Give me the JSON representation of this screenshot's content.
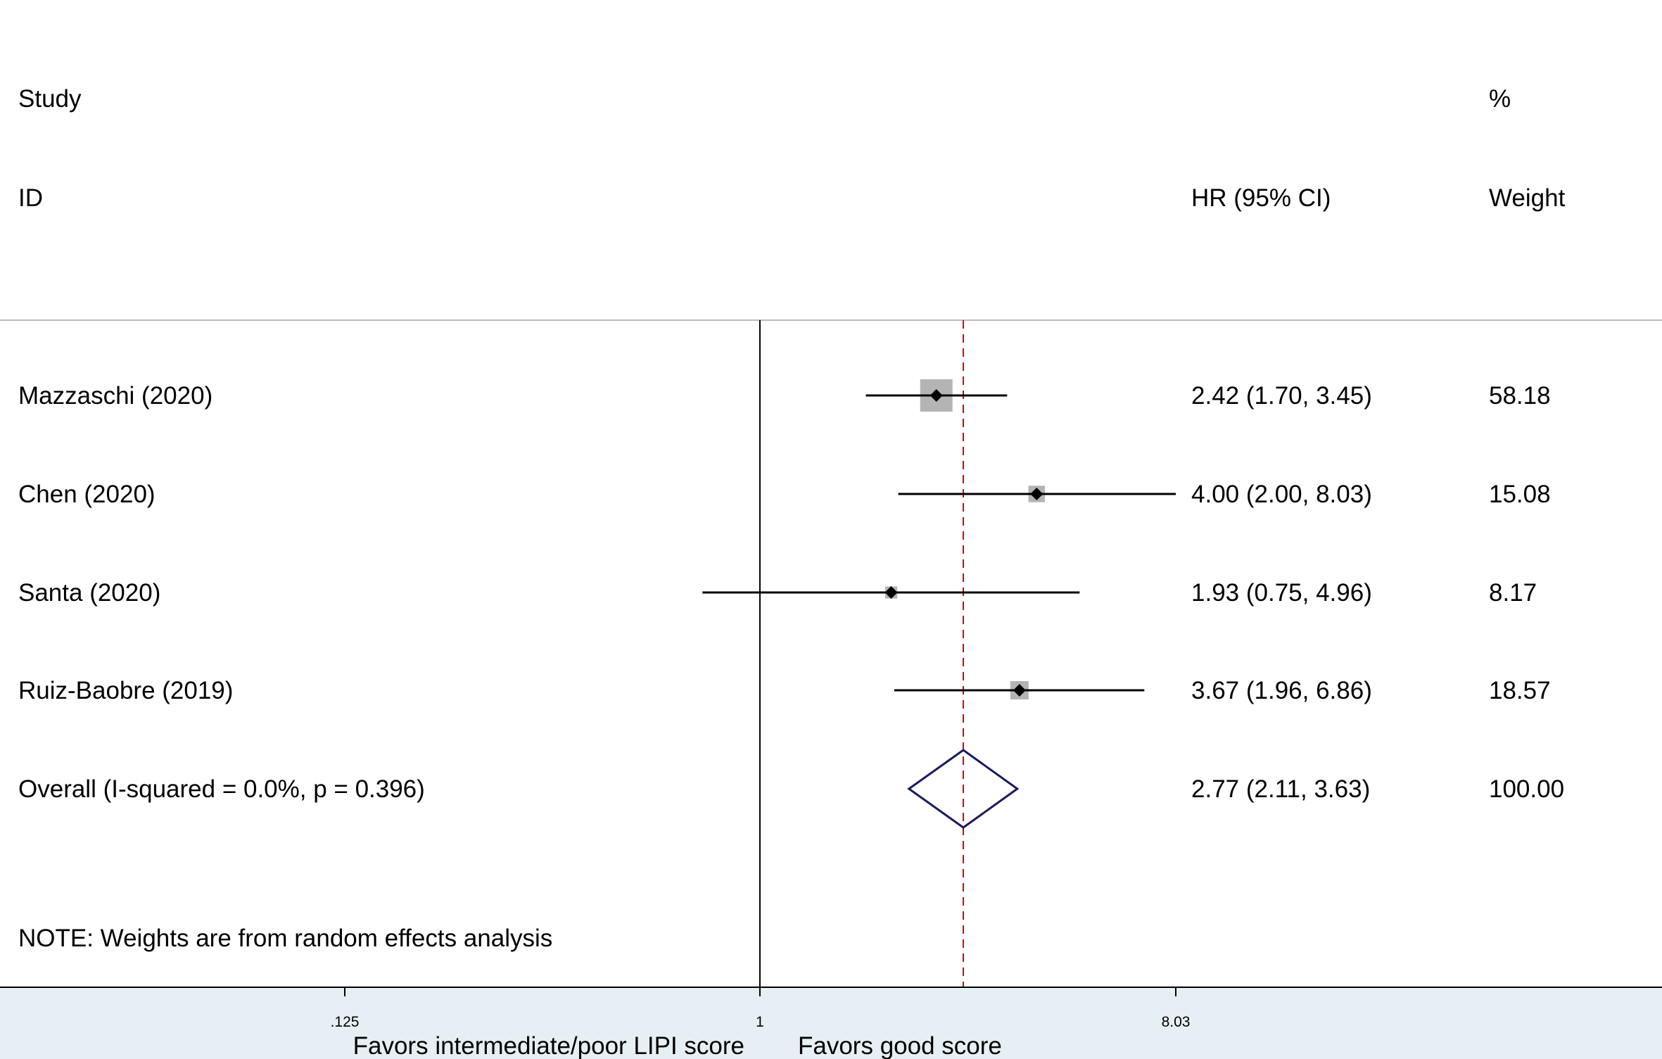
{
  "chart_data": {
    "type": "forest",
    "x_scale": "log",
    "xlim": [
      0.125,
      8.03
    ],
    "x_ticks": [
      ".125",
      "1",
      "8.03"
    ],
    "null_value": 1,
    "overall_line": 2.77,
    "headers": {
      "study_line1": "Study",
      "study_line2": "ID",
      "hr": "HR (95% CI)",
      "weight_line1": "%",
      "weight_line2": "Weight"
    },
    "studies": [
      {
        "label": "Mazzaschi (2020)",
        "hr": 2.42,
        "lo": 1.7,
        "hi": 3.45,
        "hr_text": "2.42 (1.70, 3.45)",
        "weight": 58.18,
        "weight_text": "58.18"
      },
      {
        "label": "Chen  (2020)",
        "hr": 4.0,
        "lo": 2.0,
        "hi": 8.03,
        "hr_text": "4.00 (2.00, 8.03)",
        "weight": 15.08,
        "weight_text": "15.08"
      },
      {
        "label": "Santa  (2020)",
        "hr": 1.93,
        "lo": 0.75,
        "hi": 4.96,
        "hr_text": "1.93 (0.75, 4.96)",
        "weight": 8.17,
        "weight_text": "8.17"
      },
      {
        "label": "Ruiz-Baobre (2019)",
        "hr": 3.67,
        "lo": 1.96,
        "hi": 6.86,
        "hr_text": "3.67 (1.96, 6.86)",
        "weight": 18.57,
        "weight_text": "18.57"
      }
    ],
    "overall": {
      "label": "Overall  (I-squared = 0.0%, p = 0.396)",
      "hr": 2.77,
      "lo": 2.11,
      "hi": 3.63,
      "hr_text": "2.77 (2.11, 3.63)",
      "weight_text": "100.00"
    },
    "note": "NOTE: Weights are from random effects analysis",
    "xlabel_left": "Favors intermediate/poor  LIPI score",
    "xlabel_right": "Favors  good score",
    "colors": {
      "diamond": "#1a1a5e",
      "overall_line": "#9b1c1c",
      "box_fill": "#b4b4b4",
      "axis_band": "#e6eff3"
    }
  }
}
